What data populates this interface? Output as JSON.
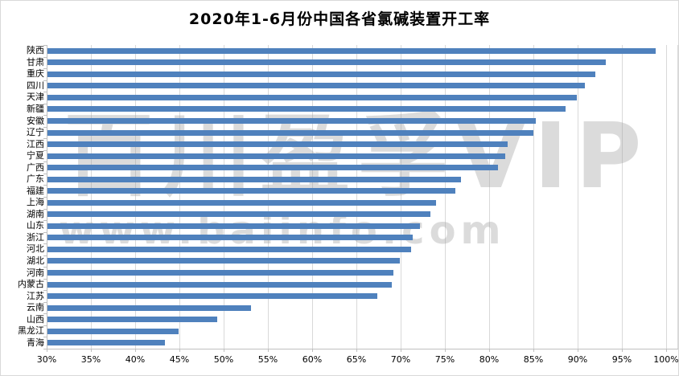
{
  "title": "2020年1-6月份中国各省氯碱装置开工率",
  "watermark": {
    "line1": "百川盈孚VIP",
    "line2": "www.baiinfo.com"
  },
  "colors": {
    "bar": "#4f81bd",
    "gridline": "#d9d9d9",
    "axis": "#bfbfbf",
    "title_text": "#000000",
    "watermark_text": "#a0a0a0",
    "background": "#ffffff"
  },
  "chart_data": {
    "type": "bar",
    "orientation": "horizontal",
    "title": "2020年1-6月份中国各省氯碱装置开工率",
    "xlabel": "",
    "ylabel": "",
    "grid": true,
    "legend": false,
    "value_suffix": "%",
    "x_axis": {
      "min": 30,
      "max": 100,
      "step": 5,
      "tick_labels": [
        "30%",
        "35%",
        "40%",
        "45%",
        "50%",
        "55%",
        "60%",
        "65%",
        "70%",
        "75%",
        "80%",
        "85%",
        "90%",
        "95%",
        "100%"
      ]
    },
    "categories": [
      "陕西",
      "甘肃",
      "重庆",
      "四川",
      "天津",
      "新疆",
      "安徽",
      "辽宁",
      "江西",
      "宁夏",
      "广西",
      "广东",
      "福建",
      "上海",
      "湖南",
      "山东",
      "浙江",
      "河北",
      "湖北",
      "河南",
      "内蒙古",
      "江苏",
      "云南",
      "山西",
      "黑龙江",
      "青海"
    ],
    "values": [
      98.8,
      93.2,
      92.0,
      90.8,
      89.9,
      88.6,
      85.3,
      85.0,
      82.1,
      81.8,
      81.0,
      76.8,
      76.2,
      74.0,
      73.4,
      72.2,
      71.4,
      71.2,
      69.9,
      69.2,
      69.0,
      67.4,
      53.1,
      49.3,
      44.9,
      43.4
    ]
  }
}
